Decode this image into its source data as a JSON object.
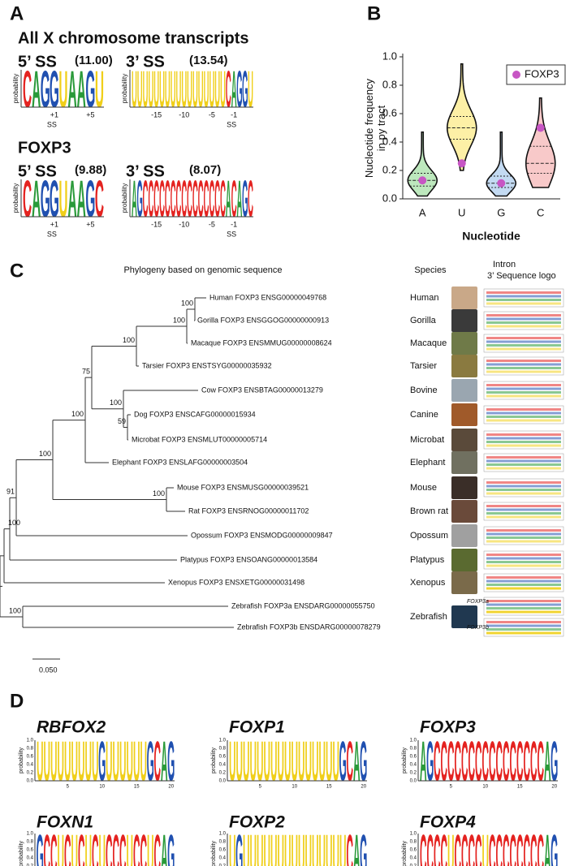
{
  "panel_a": {
    "label": "A",
    "ylabel": "probability",
    "ss": "SS",
    "sections": [
      {
        "heading": "All X chromosome transcripts",
        "logos": [
          {
            "title": "5’ SS",
            "score": "(11.00)",
            "letters": "CAGGUAAGU",
            "ticks": [
              "+1",
              "+5"
            ]
          },
          {
            "title": "3’ SS",
            "score": "(13.54)",
            "letters": "UUUUUUUUUUUUUUUUUCAGGU",
            "ticks": [
              "-15",
              "-10",
              "-5",
              "-1"
            ]
          }
        ]
      },
      {
        "heading": "FOXP3",
        "logos": [
          {
            "title": "5’ SS",
            "score": "(9.88)",
            "letters": "CAGGUAAGC",
            "ticks": [
              "+1",
              "+5"
            ]
          },
          {
            "title": "3’ SS",
            "score": "(8.07)",
            "letters": "AGCCCCCCCCCCCCCCCACAGC",
            "ticks": [
              "-15",
              "-10",
              "-5",
              "-1"
            ]
          }
        ]
      }
    ]
  },
  "letter_colors": {
    "A": "#2a9a3a",
    "C": "#e42320",
    "G": "#2050b0",
    "U": "#f0cf1a"
  },
  "chart_data": {
    "type": "violin",
    "label": "B",
    "ylabel": "Nucleotide frequency in py tract",
    "xlabel": "Nucleotide",
    "categories": [
      "A",
      "U",
      "G",
      "C"
    ],
    "violins": [
      {
        "min": 0.02,
        "q1": 0.09,
        "median": 0.13,
        "q3": 0.18,
        "max": 0.47,
        "color": "#bde8bd"
      },
      {
        "min": 0.2,
        "q1": 0.42,
        "median": 0.5,
        "q3": 0.58,
        "max": 0.95,
        "color": "#fdf0a6"
      },
      {
        "min": 0.02,
        "q1": 0.08,
        "median": 0.11,
        "q3": 0.16,
        "max": 0.47,
        "color": "#c3daf2"
      },
      {
        "min": 0.08,
        "q1": 0.18,
        "median": 0.25,
        "q3": 0.37,
        "max": 0.71,
        "color": "#f8c9c9"
      }
    ],
    "series": [
      {
        "name": "FOXP3",
        "color": "#c756c4",
        "values": [
          0.13,
          0.25,
          0.11,
          0.5
        ]
      }
    ],
    "ylim": [
      0,
      1
    ],
    "yticks": [
      {
        "value": 0,
        "label": "0.0"
      },
      {
        "value": 0.2,
        "label": "0.2"
      },
      {
        "value": 0.4,
        "label": "0.4"
      },
      {
        "value": 0.6,
        "label": "0.6"
      },
      {
        "value": 0.8,
        "label": "0.8"
      },
      {
        "value": 1,
        "label": "1.0"
      }
    ],
    "legend": "upper right"
  },
  "panel_c": {
    "label": "C",
    "title": "Phylogeny based on genomic sequence",
    "species_title": "Species",
    "logo_title_1": "Intron",
    "logo_title_2": "3’ Sequence logo",
    "leaves": [
      "Human FOXP3 ENSG00000049768",
      "Gorilla FOXP3 ENSGGOG00000000913",
      "Macaque FOXP3 ENSMMUG00000008624",
      "Tarsier FOXP3 ENSTSYG00000035932",
      "Cow FOXP3 ENSBTAG00000013279",
      "Dog FOXP3 ENSCAFG00000015934",
      "Microbat FOXP3 ENSMLUT00000005714",
      "Elephant FOXP3 ENSLAFG00000003504",
      "Mouse FOXP3 ENSMUSG00000039521",
      "Rat FOXP3 ENSRNOG00000011702",
      "Opossum FOXP3 ENSMODG00000009847",
      "Platypus FOXP3 ENSOANG00000013584",
      "Xenopus FOXP3 ENSXETG00000031498",
      "Zebrafish FOXP3a ENSDARG00000055750",
      "Zebrafish FOXP3b ENSDARG00000078279"
    ],
    "species": [
      "Human",
      "Gorilla",
      "Macaque",
      "Tarsier",
      "Bovine",
      "Canine",
      "Microbat",
      "Elephant",
      "Mouse",
      "Brown rat",
      "Opossum",
      "Platypus",
      "Xenopus",
      "Zebrafish"
    ],
    "paralogs": [
      "FOXP3a",
      "FOXP3b"
    ],
    "bootstrap": [
      100,
      91,
      100,
      100,
      100,
      75,
      100,
      100,
      100,
      100,
      59,
      100
    ],
    "scale": "0.050"
  },
  "panel_d": {
    "label": "D",
    "ylabel": "probability",
    "yticks": [
      "1.0",
      "0.8",
      "0.6",
      "0.4",
      "0.2",
      "0.0"
    ],
    "xticks": [
      "5",
      "10",
      "15",
      "20"
    ],
    "logos": [
      {
        "title": "RBFOX2",
        "letters": "UUUUUUUUUGUUUUUUGCAG"
      },
      {
        "title": "FOXP1",
        "letters": "UUUUUUUUUUUUUUUUGCAG"
      },
      {
        "title": "FOXP3",
        "letters": "AGCCCCCCCCCCCCCCCCAG"
      },
      {
        "title": "FOXN1",
        "letters": "GCCUCUCUCUCCCUCCUCAG"
      },
      {
        "title": "FOXP2",
        "letters": "UGUUUUUUUUUUUUUUUCAG"
      },
      {
        "title": "FOXP4",
        "letters": "CCCCUCCCCUCCCCCCCCAG"
      }
    ]
  }
}
